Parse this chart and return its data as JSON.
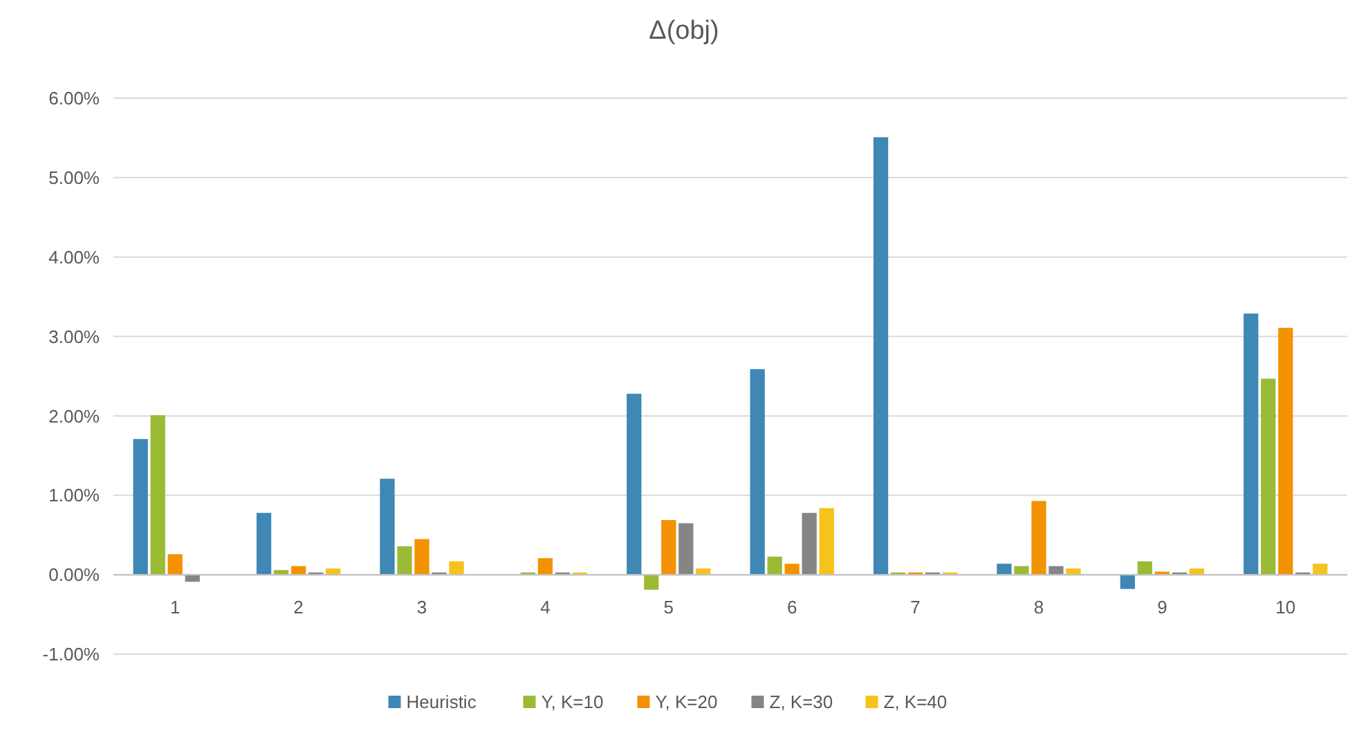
{
  "chart_data": {
    "type": "bar",
    "title": "Δ(obj)",
    "categories": [
      "1",
      "2",
      "3",
      "4",
      "5",
      "6",
      "7",
      "8",
      "9",
      "10"
    ],
    "series": [
      {
        "name": "Heuristic",
        "color": "#3f87b4",
        "values": [
          1.7,
          0.77,
          1.2,
          0,
          2.27,
          2.58,
          5.5,
          0.13,
          -0.17,
          3.28
        ]
      },
      {
        "name": "Y, K=10",
        "color": "#9bbb35",
        "values": [
          2.0,
          0.05,
          0.35,
          0.02,
          -0.18,
          0.22,
          0.02,
          0.1,
          0.16,
          2.46
        ]
      },
      {
        "name": "Y, K=20",
        "color": "#f39200",
        "values": [
          0.25,
          0.1,
          0.44,
          0.2,
          0.68,
          0.13,
          0.02,
          0.92,
          0.03,
          3.1
        ]
      },
      {
        "name": "Z, K=30",
        "color": "#858585",
        "values": [
          -0.08,
          0.02,
          0.02,
          0.02,
          0.64,
          0.77,
          0.02,
          0.1,
          0.02,
          0.02
        ]
      },
      {
        "name": "Z, K=40",
        "color": "#f6c21c",
        "values": [
          0,
          0.07,
          0.16,
          0.02,
          0.07,
          0.83,
          0.02,
          0.07,
          0.07,
          0.13
        ]
      }
    ],
    "ylim": [
      -1,
      6
    ],
    "yticks": [
      {
        "value": -1,
        "label": "-1.00%"
      },
      {
        "value": 0,
        "label": "0.00%"
      },
      {
        "value": 1,
        "label": "1.00%"
      },
      {
        "value": 2,
        "label": "2.00%"
      },
      {
        "value": 3,
        "label": "3.00%"
      },
      {
        "value": 4,
        "label": "4.00%"
      },
      {
        "value": 5,
        "label": "5.00%"
      },
      {
        "value": 6,
        "label": "6.00%"
      }
    ],
    "grid": "y",
    "legend": "bottom"
  }
}
